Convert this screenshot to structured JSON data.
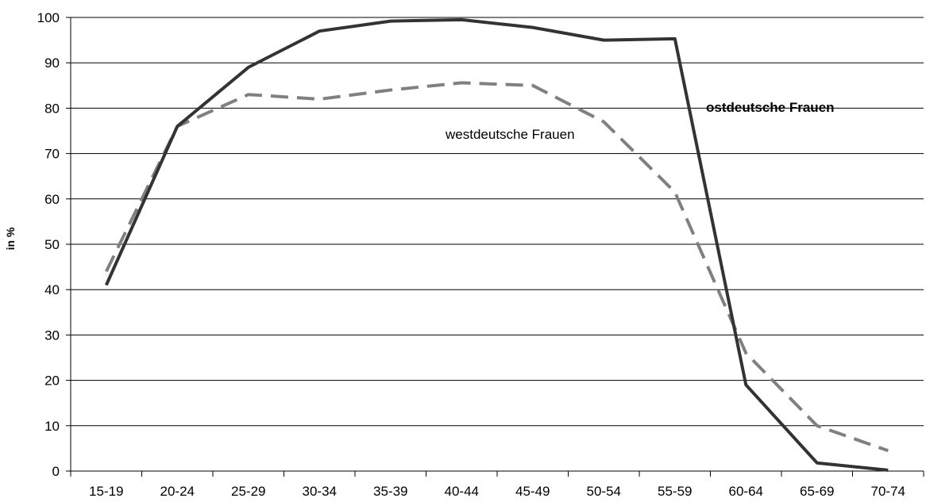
{
  "chart_data": {
    "type": "line",
    "title": "",
    "xlabel": "",
    "ylabel": "in %",
    "ylim": [
      0,
      100
    ],
    "yticks": [
      0,
      10,
      20,
      30,
      40,
      50,
      60,
      70,
      80,
      90,
      100
    ],
    "grid": "horizontal",
    "categories": [
      "15-19",
      "20-24",
      "25-29",
      "30-34",
      "35-39",
      "40-44",
      "45-49",
      "50-54",
      "55-59",
      "60-64",
      "65-69",
      "70-74"
    ],
    "series": [
      {
        "name": "ostdeutsche Frauen",
        "color": "#333333",
        "style": "solid",
        "values": [
          41,
          76,
          89,
          97,
          99.2,
          99.5,
          97.8,
          95,
          95.3,
          19,
          1.8,
          0.2
        ]
      },
      {
        "name": "westdeutsche Frauen",
        "color": "#808080",
        "style": "dashed",
        "values": [
          44,
          76,
          83,
          82,
          84,
          85.6,
          85,
          77,
          61.5,
          26,
          10,
          4.5
        ]
      }
    ]
  }
}
